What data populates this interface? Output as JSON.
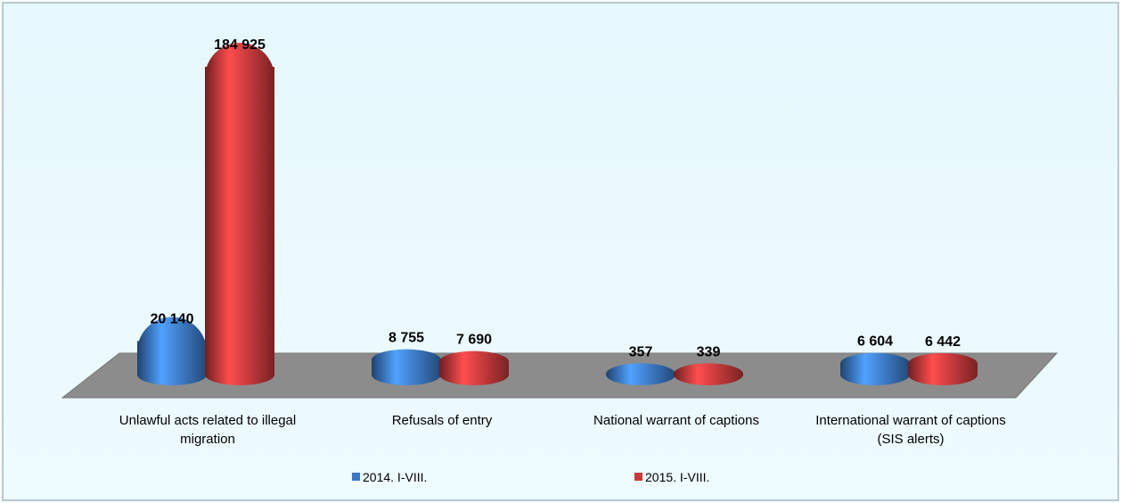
{
  "chart_data": {
    "type": "bar3d",
    "categories": [
      "Unlawful acts related to illegal migration",
      "Refusals of entry",
      "National warrant of captions",
      "International warrant of captions (SIS alerts)"
    ],
    "series": [
      {
        "name": "2014. I-VIII.",
        "color": "#3b78c8",
        "values": [
          20140,
          8755,
          357,
          6604
        ],
        "value_labels": [
          "20 140",
          "8 755",
          "357",
          "6 604"
        ]
      },
      {
        "name": "2015. I-VIII.",
        "color": "#c8393a",
        "values": [
          184925,
          7690,
          339,
          6442
        ],
        "value_labels": [
          "184 925",
          "7 690",
          "339",
          "6 442"
        ]
      }
    ]
  }
}
